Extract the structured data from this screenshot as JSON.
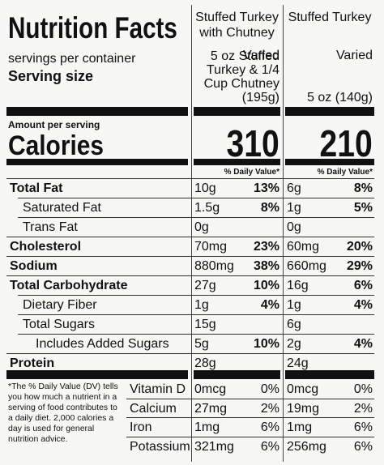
{
  "title": "Nutrition Facts",
  "columns": [
    "Stuffed Turkey with Chutney",
    "Stuffed Turkey"
  ],
  "servings_label": "servings per container",
  "servings": [
    "Varied",
    "Varied"
  ],
  "serving_size_label": "Serving size",
  "serving_size": [
    "5 oz Stuffed Turkey & 1/4 Cup Chutney (195g)",
    "5 oz (140g)"
  ],
  "amount_label": "Amount per serving",
  "calories_label": "Calories",
  "calories": [
    "310",
    "210"
  ],
  "dv_header": [
    "% Daily Value*",
    "% Daily Value*"
  ],
  "nutrients": [
    {
      "name": "Total Fat",
      "bold": true,
      "indent": 0,
      "values": [
        [
          "10g",
          "13%"
        ],
        [
          "6g",
          "8%"
        ]
      ]
    },
    {
      "name": "Saturated Fat",
      "bold": false,
      "indent": 1,
      "values": [
        [
          "1.5g",
          "8%"
        ],
        [
          "1g",
          "5%"
        ]
      ]
    },
    {
      "name": "Trans Fat",
      "bold": false,
      "indent": 1,
      "values": [
        [
          "0g"
        ],
        [
          "0g"
        ]
      ]
    },
    {
      "name": "Cholesterol",
      "bold": true,
      "indent": 0,
      "values": [
        [
          "70mg",
          "23%"
        ],
        [
          "60mg",
          "20%"
        ]
      ]
    },
    {
      "name": "Sodium",
      "bold": true,
      "indent": 0,
      "values": [
        [
          "880mg",
          "38%"
        ],
        [
          "660mg",
          "29%"
        ]
      ]
    },
    {
      "name": "Total Carbohydrate",
      "bold": true,
      "indent": 0,
      "values": [
        [
          "27g",
          "10%"
        ],
        [
          "16g",
          "6%"
        ]
      ]
    },
    {
      "name": "Dietary Fiber",
      "bold": false,
      "indent": 1,
      "values": [
        [
          "1g",
          "4%"
        ],
        [
          "1g",
          "4%"
        ]
      ]
    },
    {
      "name": "Total Sugars",
      "bold": false,
      "indent": 1,
      "values": [
        [
          "15g"
        ],
        [
          "6g"
        ]
      ]
    },
    {
      "name": "Includes Added Sugars",
      "bold": false,
      "indent": 2,
      "values": [
        [
          "5g",
          "10%"
        ],
        [
          "2g",
          "4%"
        ]
      ]
    },
    {
      "name": "Protein",
      "bold": true,
      "indent": 0,
      "values": [
        [
          "28g"
        ],
        [
          "24g"
        ]
      ]
    }
  ],
  "footnote": "*The % Daily Value (DV) tells you how much a nutrient in a serving of food contributes to a daily diet. 2,000 calories a day is used for general nutrition advice.",
  "minerals": [
    {
      "name": "Vitamin D",
      "values": [
        [
          "0mcg",
          "0%"
        ],
        [
          "0mcg",
          "0%"
        ]
      ]
    },
    {
      "name": "Calcium",
      "values": [
        [
          "27mg",
          "2%"
        ],
        [
          "19mg",
          "2%"
        ]
      ]
    },
    {
      "name": "Iron",
      "values": [
        [
          "1mg",
          "6%"
        ],
        [
          "1mg",
          "6%"
        ]
      ]
    },
    {
      "name": "Potassium",
      "values": [
        [
          "321mg",
          "6%"
        ],
        [
          "256mg",
          "6%"
        ]
      ]
    }
  ]
}
